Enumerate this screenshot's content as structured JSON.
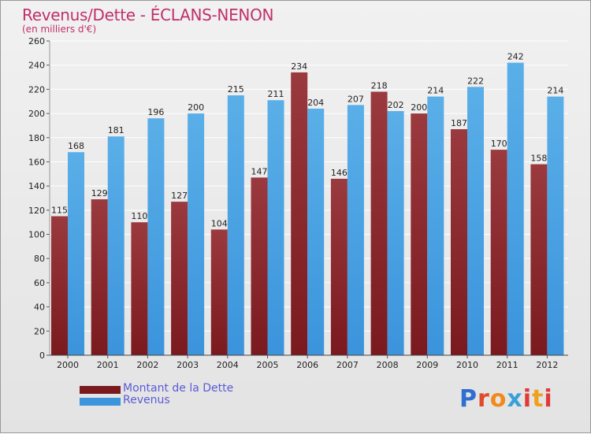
{
  "header": {
    "title": "Revenus/Dette - ÉCLANS-NENON",
    "subtitle": "(en milliers d'€)"
  },
  "legend": {
    "debt_label": "Montant de la Dette",
    "revenue_label": "Revenus"
  },
  "logo": {
    "text": "Proxiti",
    "letters": [
      "P",
      "r",
      "o",
      "x",
      "i",
      "t",
      "i"
    ],
    "colors": [
      "#2f6fd1",
      "#e0492c",
      "#f08a1d",
      "#3aa0d8",
      "#e03a3a",
      "#f0a020",
      "#e03a3a"
    ]
  },
  "colors": {
    "debt": "#7a1a1f",
    "debt_light": "#9a3a3e",
    "revenue": "#3b94dc",
    "revenue_light": "#5aafe8",
    "axis_text": "#222222",
    "grid": "#ffffff"
  },
  "chart_data": {
    "type": "bar",
    "title": "Revenus/Dette - ÉCLANS-NENON",
    "ylabel": "(en milliers d'€)",
    "xlabel": "",
    "categories": [
      "2000",
      "2001",
      "2002",
      "2003",
      "2004",
      "2005",
      "2006",
      "2007",
      "2008",
      "2009",
      "2010",
      "2011",
      "2012"
    ],
    "series": [
      {
        "name": "Montant de la Dette",
        "values": [
          115,
          129,
          110,
          127,
          104,
          147,
          234,
          146,
          218,
          200,
          187,
          170,
          158
        ]
      },
      {
        "name": "Revenus",
        "values": [
          168,
          181,
          196,
          200,
          215,
          211,
          204,
          207,
          202,
          214,
          222,
          242,
          214
        ]
      }
    ],
    "ylim": [
      0,
      260
    ],
    "yticks": [
      0,
      20,
      40,
      60,
      80,
      100,
      120,
      140,
      160,
      180,
      200,
      220,
      240,
      260
    ],
    "grid": true,
    "legend_position": "bottom-left"
  }
}
